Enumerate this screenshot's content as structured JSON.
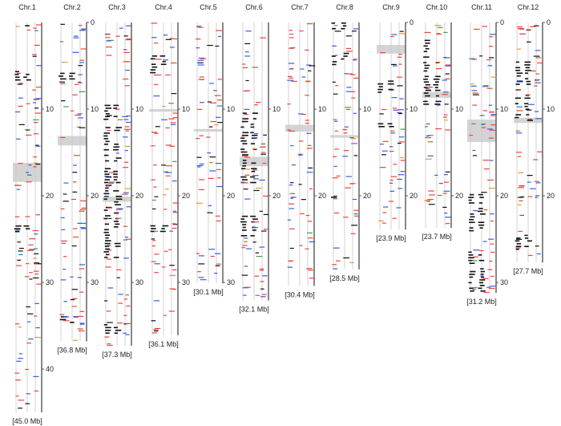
{
  "chart_data": {
    "type": "genetic-map",
    "unit": "Mb",
    "colors": {
      "black": "#111111",
      "red": "#e8473b",
      "blue": "#3a5fd9",
      "orange": "#e8943a",
      "green": "#4c9a4a",
      "centromere": "#d4d4d4",
      "axis": "#555555"
    },
    "chromosomes": [
      {
        "name": "Chr.1",
        "length": 45.0,
        "length_label": "[45.0 Mb]",
        "ticks": [
          {
            "value": 10,
            "label": "10"
          },
          {
            "value": 20,
            "label": "20"
          },
          {
            "value": 30,
            "label": "30"
          },
          {
            "value": 40,
            "label": "40"
          }
        ],
        "centromere": [
          16.2,
          18.4
        ],
        "black_blocks": [
          [
            0.3,
            0.5
          ],
          [
            5.6,
            7.2
          ],
          [
            23.1,
            24.2
          ]
        ]
      },
      {
        "name": "Chr.2",
        "length": 36.8,
        "length_label": "[36.8 Mb]",
        "ticks": [
          {
            "value": 0,
            "label": "0"
          },
          {
            "value": 10,
            "label": "10"
          },
          {
            "value": 20,
            "label": "20"
          },
          {
            "value": 30,
            "label": "30"
          }
        ],
        "centromere": [
          13.1,
          14.2
        ],
        "black_blocks": [
          [
            5.8,
            6.6
          ],
          [
            33.9,
            34.8
          ]
        ]
      },
      {
        "name": "Chr.3",
        "length": 37.3,
        "length_label": "[37.3 Mb]",
        "ticks": [
          {
            "value": 10,
            "label": "10"
          },
          {
            "value": 20,
            "label": "20"
          },
          {
            "value": 30,
            "label": "30"
          }
        ],
        "centromere": [
          20.1,
          20.7
        ],
        "black_blocks": [
          [
            9.5,
            16.0
          ],
          [
            16.8,
            27.1
          ],
          [
            34.5,
            35.8
          ]
        ]
      },
      {
        "name": "Chr.4",
        "length": 36.1,
        "length_label": "[36.1 Mb]",
        "ticks": [
          {
            "value": 10,
            "label": "10"
          },
          {
            "value": 20,
            "label": "20"
          },
          {
            "value": 30,
            "label": "30"
          }
        ],
        "centromere": [
          10.0,
          10.3
        ],
        "black_blocks": [
          [
            3.8,
            6.0
          ],
          [
            23.4,
            24.2
          ]
        ]
      },
      {
        "name": "Chr.5",
        "length": 30.1,
        "length_label": "[30.1 Mb]",
        "ticks": [
          {
            "value": 10,
            "label": "10"
          },
          {
            "value": 20,
            "label": "20"
          },
          {
            "value": 30,
            "label": "30"
          }
        ],
        "centromere": [
          12.3,
          12.6
        ],
        "black_blocks": []
      },
      {
        "name": "Chr.6",
        "length": 32.1,
        "length_label": "[32.1 Mb]",
        "ticks": [
          {
            "value": 10,
            "label": "10"
          },
          {
            "value": 20,
            "label": "20"
          }
        ],
        "centromere": [
          15.5,
          16.6
        ],
        "black_blocks": [
          [
            10.4,
            18.5
          ],
          [
            22.3,
            24.8
          ]
        ]
      },
      {
        "name": "Chr.7",
        "length": 30.4,
        "length_label": "[30.4 Mb]",
        "ticks": [
          {
            "value": 10,
            "label": "10"
          },
          {
            "value": 20,
            "label": "20"
          }
        ],
        "centromere": [
          11.8,
          12.6
        ],
        "black_blocks": []
      },
      {
        "name": "Chr.8",
        "length": 28.5,
        "length_label": "[28.5 Mb]",
        "ticks": [
          {
            "value": 10,
            "label": "10"
          },
          {
            "value": 20,
            "label": "20"
          }
        ],
        "centromere": [
          13.0,
          13.3
        ],
        "black_blocks": [
          [
            0.0,
            0.8
          ],
          [
            3.5,
            4.8
          ],
          [
            20.1,
            20.5
          ]
        ]
      },
      {
        "name": "Chr.9",
        "length": 23.9,
        "length_label": "[23.9 Mb]",
        "ticks": [
          {
            "value": 0,
            "label": "0"
          },
          {
            "value": 10,
            "label": "10"
          },
          {
            "value": 20,
            "label": "20"
          }
        ],
        "centromere": [
          2.6,
          3.6
        ],
        "black_blocks": [
          [
            6.7,
            8.0
          ],
          [
            11.3,
            12.0
          ]
        ]
      },
      {
        "name": "Chr.10",
        "length": 23.7,
        "length_label": "[23.7 Mb]",
        "ticks": [
          {
            "value": 10,
            "label": "10"
          },
          {
            "value": 20,
            "label": "20"
          }
        ],
        "centromere": [
          8.0,
          8.7
        ],
        "black_blocks": [
          [
            2.0,
            10.0
          ]
        ]
      },
      {
        "name": "Chr.11",
        "length": 31.2,
        "length_label": "[31.2 Mb]",
        "ticks": [
          {
            "value": 0,
            "label": "0"
          },
          {
            "value": 10,
            "label": "10"
          },
          {
            "value": 20,
            "label": "20"
          },
          {
            "value": 30,
            "label": "30"
          }
        ],
        "centromere": [
          11.2,
          13.8
        ],
        "black_blocks": [
          [
            19.8,
            24.0
          ],
          [
            25.8,
            31.0
          ]
        ]
      },
      {
        "name": "Chr.12",
        "length": 27.7,
        "length_label": "[27.7 Mb]",
        "ticks": [
          {
            "value": 0,
            "label": "0"
          },
          {
            "value": 10,
            "label": "10"
          },
          {
            "value": 20,
            "label": "20"
          }
        ],
        "centromere": [
          11.0,
          11.6
        ],
        "black_blocks": [
          [
            4.5,
            11.3
          ],
          [
            24.5,
            26.3
          ]
        ]
      }
    ]
  }
}
